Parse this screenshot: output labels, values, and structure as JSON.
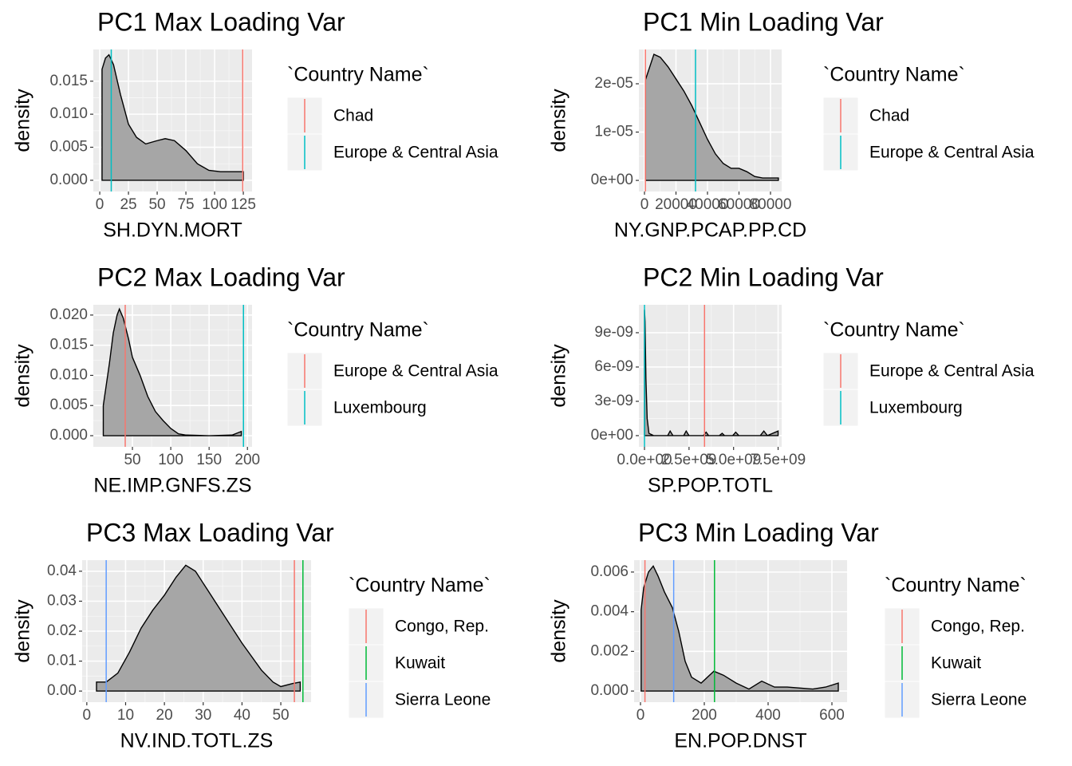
{
  "chart_data": [
    {
      "type": "density",
      "title": "PC1 Max Loading Var",
      "x_label": "SH.DYN.MORT",
      "y_label": "density",
      "fill": "#a6a6a6",
      "x": [
        2,
        5,
        8,
        12,
        18,
        25,
        32,
        40,
        50,
        57,
        65,
        75,
        85,
        95,
        105,
        115,
        125
      ],
      "values": [
        0.0168,
        0.0185,
        0.019,
        0.0175,
        0.013,
        0.0085,
        0.0065,
        0.0055,
        0.006,
        0.0063,
        0.006,
        0.0045,
        0.0025,
        0.0015,
        0.0013,
        0.0013,
        0.0013
      ],
      "xlim": [
        -5.6,
        132.6
      ],
      "ylim": [
        -0.0017,
        0.0198
      ],
      "xticks": [
        0,
        25,
        50,
        75,
        100,
        125
      ],
      "yticks": [
        {
          "value": 0,
          "label": "0.000"
        },
        0.005,
        {
          "value": 0.01,
          "label": "0.010"
        },
        0.015
      ],
      "legend_title": "`Country Name`",
      "vlines": [
        {
          "name": "Chad",
          "color": "#f8766d",
          "x": 124.5
        },
        {
          "name": "Europe & Central Asia",
          "color": "#00bfc4",
          "x": 10
        }
      ]
    },
    {
      "type": "density",
      "title": "PC1 Min Loading Var",
      "x_label": "NY.GNP.PCAP.PP.CD",
      "y_label": "density",
      "fill": "#a6a6a6",
      "x": [
        600,
        6000,
        10000,
        15000,
        20000,
        25000,
        30000,
        35000,
        40000,
        45000,
        50000,
        55000,
        60000,
        65000,
        70000,
        75000,
        80000,
        85000
      ],
      "values": [
        2.08e-05,
        2.61e-05,
        2.55e-05,
        2.35e-05,
        2.1e-05,
        1.85e-05,
        1.55e-05,
        1.2e-05,
        8.5e-06,
        5.5e-06,
        3.5e-06,
        2.5e-06,
        2.5e-06,
        1.8e-06,
        8e-07,
        5e-07,
        5e-07,
        5e-07
      ],
      "xlim": [
        -3544,
        87090
      ],
      "ylim": [
        -2.3e-06,
        2.71e-05
      ],
      "xticks": [
        0,
        20000,
        40000,
        60000,
        80000
      ],
      "yticks": [
        {
          "value": 0,
          "label": "0e+00"
        },
        {
          "value": 1e-05,
          "label": "1e-05"
        },
        {
          "value": 2e-05,
          "label": "2e-05"
        }
      ],
      "legend_title": "`Country Name`",
      "vlines": [
        {
          "name": "Chad",
          "color": "#f8766d",
          "x": 600
        },
        {
          "name": "Europe & Central Asia",
          "color": "#00bfc4",
          "x": 32400
        }
      ]
    },
    {
      "type": "density",
      "title": "PC2 Max Loading Var",
      "x_label": "NE.IMP.GNFS.ZS",
      "y_label": "density",
      "fill": "#a6a6a6",
      "x": [
        12,
        20,
        25,
        30,
        33,
        38,
        45,
        50,
        60,
        70,
        80,
        90,
        100,
        110,
        120,
        150,
        180,
        192
      ],
      "values": [
        0.005,
        0.012,
        0.017,
        0.02,
        0.021,
        0.0195,
        0.016,
        0.013,
        0.01,
        0.0065,
        0.004,
        0.0025,
        0.0012,
        0.0003,
        0.0001,
        0,
        0.0001,
        0.0007
      ],
      "xlim": [
        -1,
        206
      ],
      "ylim": [
        -0.00185,
        0.0217
      ],
      "xticks": [
        50,
        100,
        150,
        200
      ],
      "yticks": [
        {
          "value": 0,
          "label": "0.000"
        },
        0.005,
        {
          "value": 0.01,
          "label": "0.010"
        },
        0.015,
        {
          "value": 0.02,
          "label": "0.020"
        }
      ],
      "legend_title": "`Country Name`",
      "vlines": [
        {
          "name": "Europe & Central Asia",
          "color": "#f8766d",
          "x": 40.6
        },
        {
          "name": "Luxembourg",
          "color": "#00bfc4",
          "x": 194.8
        }
      ]
    },
    {
      "type": "density",
      "title": "PC2 Min Loading Var",
      "x_label": "SP.POP.TOTL",
      "y_label": "density",
      "fill": "#a6a6a6",
      "x": [
        10000,
        30000000,
        80000000,
        150000000,
        250000000,
        500000000,
        1300000000,
        1440000000,
        1600000000,
        2200000000,
        2340000000,
        2500000000,
        3300000000,
        3460000000,
        3600000000,
        4200000000,
        4360000000,
        4500000000,
        4950000000,
        5120000000,
        5300000000,
        6500000000,
        6700000000,
        6900000000,
        7500000000
      ],
      "values": [
        1.1e-08,
        1e-08,
        5e-09,
        1.5e-09,
        2e-10,
        1e-11,
        0,
        4e-10,
        0,
        0,
        4e-10,
        0,
        0,
        3e-10,
        0,
        0,
        2e-10,
        0,
        0,
        3e-10,
        0,
        0,
        4e-10,
        0,
        4e-10
      ],
      "xlim": [
        -314000000,
        7700000000
      ],
      "ylim": [
        -9.8e-10,
        1.144e-08
      ],
      "xticks": [
        {
          "value": 0,
          "label": "0.0e+00"
        },
        {
          "value": 2500000000,
          "label": "2.5e+09"
        },
        {
          "value": 5000000000,
          "label": "5.0e+09"
        },
        {
          "value": 7500000000,
          "label": "7.5e+09"
        }
      ],
      "yticks": [
        {
          "value": 0,
          "label": "0e+00"
        },
        {
          "value": 3e-09,
          "label": "3e-09"
        },
        {
          "value": 6e-09,
          "label": "6e-09"
        },
        {
          "value": 9e-09,
          "label": "9e-09"
        }
      ],
      "legend_title": "`Country Name`",
      "vlines": [
        {
          "name": "Europe & Central Asia",
          "color": "#f8766d",
          "x": 3370000000
        },
        {
          "name": "Luxembourg",
          "color": "#00bfc4",
          "x": 600000
        }
      ]
    },
    {
      "type": "density",
      "title": "PC3 Max Loading Var",
      "x_label": "NV.IND.TOTL.ZS",
      "y_label": "density",
      "fill": "#a6a6a6",
      "x": [
        2.5,
        5,
        8,
        11,
        14,
        17,
        20,
        23,
        25.5,
        28,
        31,
        35,
        40,
        45,
        48,
        50,
        53,
        55
      ],
      "values": [
        0.003,
        0.003,
        0.006,
        0.013,
        0.021,
        0.027,
        0.032,
        0.038,
        0.042,
        0.04,
        0.034,
        0.026,
        0.016,
        0.007,
        0.003,
        0.0015,
        0.0025,
        0.003
      ],
      "xlim": [
        -1.2,
        57.8
      ],
      "ylim": [
        -0.0037,
        0.0437
      ],
      "xticks": [
        0,
        10,
        20,
        30,
        40,
        50
      ],
      "yticks": [
        {
          "value": 0,
          "label": "0.00"
        },
        0.01,
        0.02,
        0.03,
        0.04
      ],
      "legend_title": "`Country Name`",
      "vlines": [
        {
          "name": "Congo, Rep.",
          "color": "#f8766d",
          "x": 53.5
        },
        {
          "name": "Kuwait",
          "color": "#00ba38",
          "x": 55.7
        },
        {
          "name": "Sierra Leone",
          "color": "#619cff",
          "x": 5
        }
      ]
    },
    {
      "type": "density",
      "title": "PC3 Min Loading Var",
      "x_label": "EN.POP.DNST",
      "y_label": "density",
      "fill": "#a6a6a6",
      "x": [
        2,
        10,
        25,
        40,
        55,
        75,
        100,
        120,
        140,
        160,
        190,
        230,
        260,
        300,
        340,
        380,
        420,
        460,
        500,
        540,
        580,
        620
      ],
      "values": [
        0.0041,
        0.0052,
        0.006,
        0.0063,
        0.0058,
        0.005,
        0.0042,
        0.003,
        0.0015,
        0.0007,
        0.0004,
        0.001,
        0.0008,
        0.0004,
        0.0001,
        0.0005,
        0.0002,
        0.0002,
        0.00015,
        0.0001,
        0.0002,
        0.0004
      ],
      "xlim": [
        -20,
        647.5
      ],
      "ylim": [
        -0.00056,
        0.0066
      ],
      "xticks": [
        0,
        200,
        400,
        600
      ],
      "yticks": [
        {
          "value": 0,
          "label": "0.000"
        },
        0.002,
        0.004,
        0.006
      ],
      "legend_title": "`Country Name`",
      "vlines": [
        {
          "name": "Congo, Rep.",
          "color": "#f8766d",
          "x": 14
        },
        {
          "name": "Kuwait",
          "color": "#00ba38",
          "x": 232
        },
        {
          "name": "Sierra Leone",
          "color": "#619cff",
          "x": 104
        }
      ]
    }
  ]
}
